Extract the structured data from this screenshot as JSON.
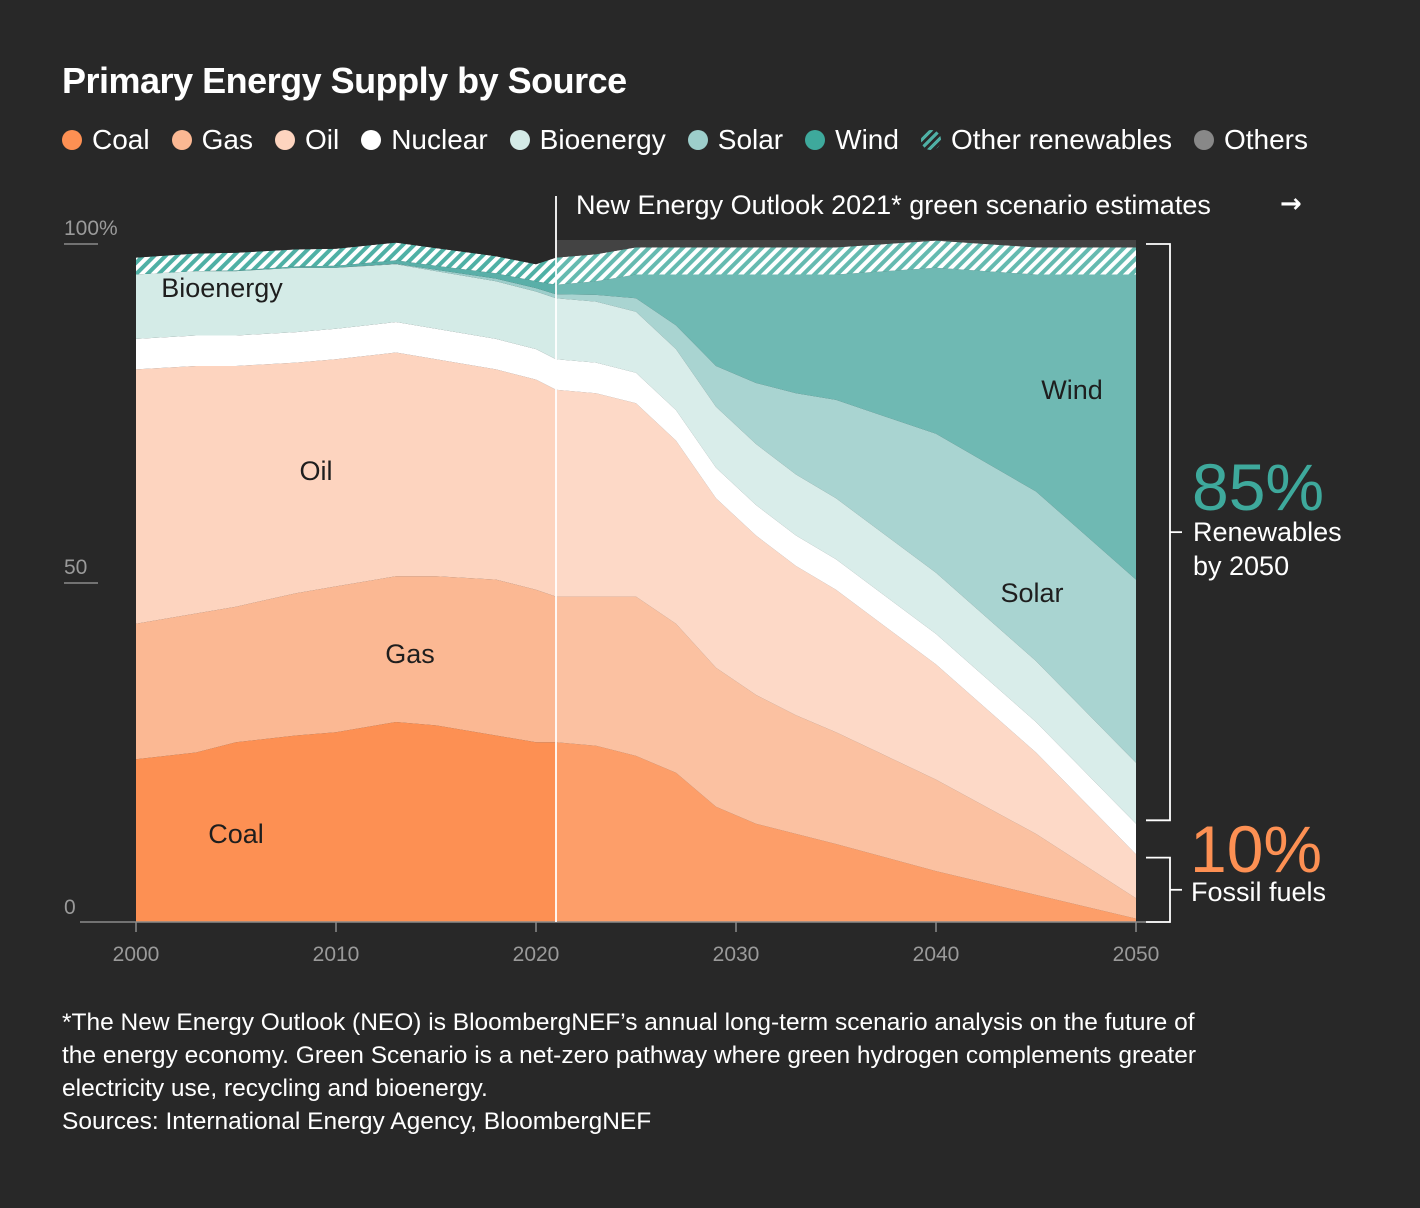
{
  "colors": {
    "Coal": "#fd9053",
    "Gas": "#fbb893",
    "Oil": "#fdd4bf",
    "Nuclear": "#ffffff",
    "Bioenergy": "#d4ebe7",
    "Solar": "#9dcecb",
    "Wind": "#5aafa8",
    "Other renewables": "#4fb0a5",
    "Others": "#888888",
    "accent_green": "#3ea99c",
    "accent_orange": "#fd9053",
    "background": "#282828",
    "axis": "#8a8a8a"
  },
  "chart_data": {
    "type": "area",
    "title": "Primary Energy Supply by Source",
    "stacked": true,
    "xlabel": "",
    "ylabel": "",
    "xlim": [
      2000,
      2050
    ],
    "ylim": [
      0,
      100
    ],
    "x_ticks": [
      "2000",
      "2010",
      "2020",
      "2030",
      "2040",
      "2050"
    ],
    "y_ticks": [
      "0",
      "50",
      "100%"
    ],
    "legend": [
      "Coal",
      "Gas",
      "Oil",
      "Nuclear",
      "Bioenergy",
      "Solar",
      "Wind",
      "Other renewables",
      "Others"
    ],
    "legend_position": "top",
    "x": [
      2000,
      2003,
      2005,
      2008,
      2010,
      2013,
      2015,
      2018,
      2020,
      2021,
      2023,
      2025,
      2027,
      2029,
      2031,
      2033,
      2035,
      2040,
      2045,
      2050
    ],
    "series": [
      {
        "name": "Coal",
        "values": [
          24.0,
          25.0,
          26.5,
          27.5,
          28.0,
          29.5,
          29.0,
          27.5,
          26.5,
          26.5,
          26.0,
          24.5,
          22.0,
          17.0,
          14.5,
          13.0,
          11.5,
          7.5,
          4.0,
          0.5
        ]
      },
      {
        "name": "Gas",
        "values": [
          20.0,
          20.5,
          20.0,
          21.0,
          21.5,
          21.5,
          22.0,
          23.0,
          22.5,
          21.5,
          22.0,
          23.5,
          22.0,
          20.5,
          19.0,
          17.5,
          16.5,
          13.5,
          9.0,
          3.0
        ]
      },
      {
        "name": "Oil",
        "values": [
          37.5,
          36.5,
          35.5,
          34.0,
          33.5,
          33.0,
          32.0,
          31.0,
          31.0,
          30.5,
          30.0,
          28.5,
          27.0,
          25.0,
          23.5,
          22.0,
          21.0,
          17.0,
          12.0,
          6.5
        ]
      },
      {
        "name": "Nuclear",
        "values": [
          4.5,
          4.5,
          4.5,
          4.5,
          4.5,
          4.5,
          4.5,
          4.5,
          4.5,
          4.5,
          4.5,
          4.5,
          4.5,
          4.5,
          4.5,
          4.5,
          4.5,
          4.5,
          4.5,
          4.5
        ]
      },
      {
        "name": "Bioenergy",
        "values": [
          9.5,
          9.5,
          9.5,
          9.5,
          9.0,
          8.5,
          8.5,
          8.5,
          8.5,
          9.0,
          9.0,
          9.0,
          9.0,
          9.0,
          9.0,
          9.0,
          9.0,
          9.0,
          9.0,
          9.0
        ]
      },
      {
        "name": "Solar",
        "values": [
          0.0,
          0.0,
          0.0,
          0.0,
          0.0,
          0.1,
          0.2,
          0.4,
          0.5,
          0.6,
          1.0,
          2.0,
          3.5,
          6.0,
          9.0,
          12.0,
          14.5,
          20.5,
          25.0,
          27.0
        ]
      },
      {
        "name": "Wind",
        "values": [
          0.0,
          0.0,
          0.1,
          0.2,
          0.3,
          0.5,
          0.6,
          0.8,
          1.0,
          1.4,
          2.0,
          3.5,
          7.5,
          13.5,
          16.0,
          17.5,
          18.5,
          24.5,
          32.0,
          45.0
        ]
      },
      {
        "name": "Other renewables",
        "values": [
          2.5,
          2.6,
          2.6,
          2.5,
          2.5,
          2.6,
          2.6,
          2.5,
          2.5,
          4.0,
          4.0,
          4.0,
          4.0,
          4.0,
          4.0,
          4.0,
          4.0,
          4.0,
          4.0,
          4.0
        ]
      },
      {
        "name": "Others",
        "values": [
          2.0,
          1.4,
          1.3,
          0.8,
          0.7,
          0.3,
          0.6,
          1.8,
          3.0,
          2.0,
          1.5,
          0.5,
          0.5,
          0.5,
          0.5,
          0.5,
          0.5,
          0.5,
          0.5,
          0.5
        ]
      }
    ],
    "area_labels": [
      {
        "text": "Coal",
        "series": "Coal",
        "x": 2005,
        "y": 13
      },
      {
        "text": "Gas",
        "series": "Gas",
        "x": 2013.7,
        "y": 39.5
      },
      {
        "text": "Oil",
        "series": "Oil",
        "x": 2009,
        "y": 66.5
      },
      {
        "text": "Bioenergy",
        "series": "Bioenergy",
        "x": 2004.3,
        "y": 93.5
      },
      {
        "text": "Solar",
        "series": "Solar",
        "x": 2044.8,
        "y": 48.5
      },
      {
        "text": "Wind",
        "series": "Wind",
        "x": 2046.8,
        "y": 78.5
      }
    ],
    "annotations": {
      "projection_start_year": 2021,
      "projection_label": "New Energy Outlook 2021* green scenario estimates",
      "projection_arrow": "→",
      "renewables_value": "85%",
      "renewables_text_line1": "Renewables",
      "renewables_text_line2": "by 2050",
      "renewables_range": [
        15,
        100
      ],
      "fossil_value": "10%",
      "fossil_text": "Fossil fuels",
      "fossil_range": [
        0,
        9.5
      ]
    }
  },
  "footnote": {
    "line1": "*The New Energy Outlook (NEO) is BloombergNEF’s annual long-term scenario analysis on the future of",
    "line2": "the energy economy. Green Scenario is a net-zero pathway where green hydrogen complements greater",
    "line3": "electricity use, recycling and bioenergy.",
    "sources": "Sources: International Energy Agency, BloombergNEF"
  }
}
